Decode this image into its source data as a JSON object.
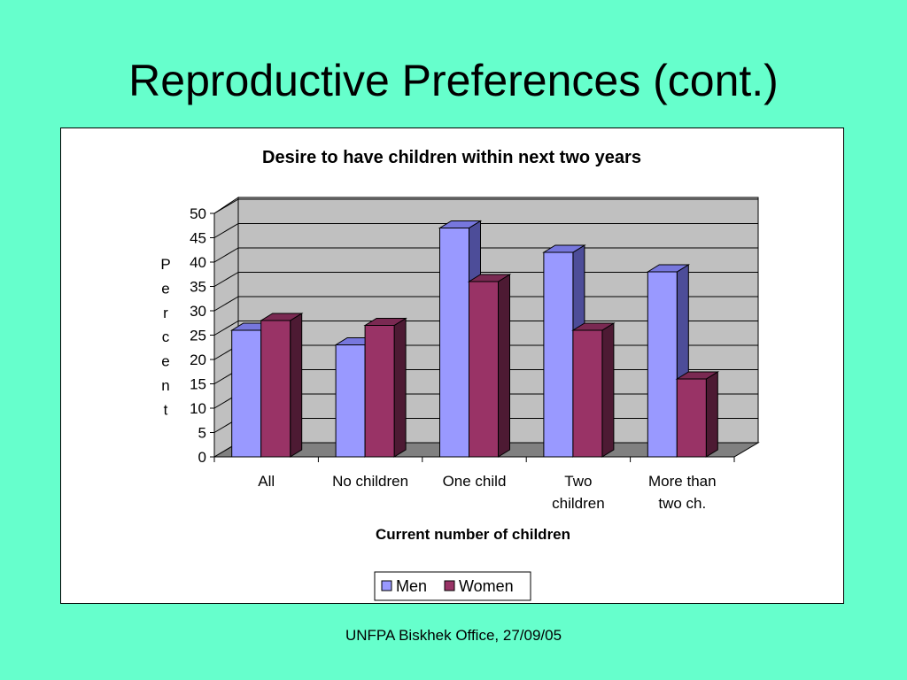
{
  "slide": {
    "title": "Reproductive Preferences (cont.)",
    "footer": "UNFPA Biskhek Office, 27/09/05"
  },
  "chart_data": {
    "type": "bar",
    "title": "Desire to have children within next two years",
    "xlabel": "Current number of children",
    "ylabel": "Percent",
    "ylim": [
      0,
      50
    ],
    "yticks": [
      0,
      5,
      10,
      15,
      20,
      25,
      30,
      35,
      40,
      45,
      50
    ],
    "categories": [
      [
        "All"
      ],
      [
        "No children"
      ],
      [
        "One child"
      ],
      [
        "Two",
        "children"
      ],
      [
        "More than",
        "two ch."
      ]
    ],
    "series": [
      {
        "name": "Men",
        "values": [
          26,
          23,
          47,
          42,
          38
        ],
        "color": "#9999ff",
        "side": "#4d4d99",
        "top": "#7777dd"
      },
      {
        "name": "Women",
        "values": [
          28,
          27,
          36,
          26,
          16
        ],
        "color": "#993366",
        "side": "#4d1a33",
        "top": "#7a2952"
      }
    ],
    "grid": true,
    "legend": "bottom"
  }
}
